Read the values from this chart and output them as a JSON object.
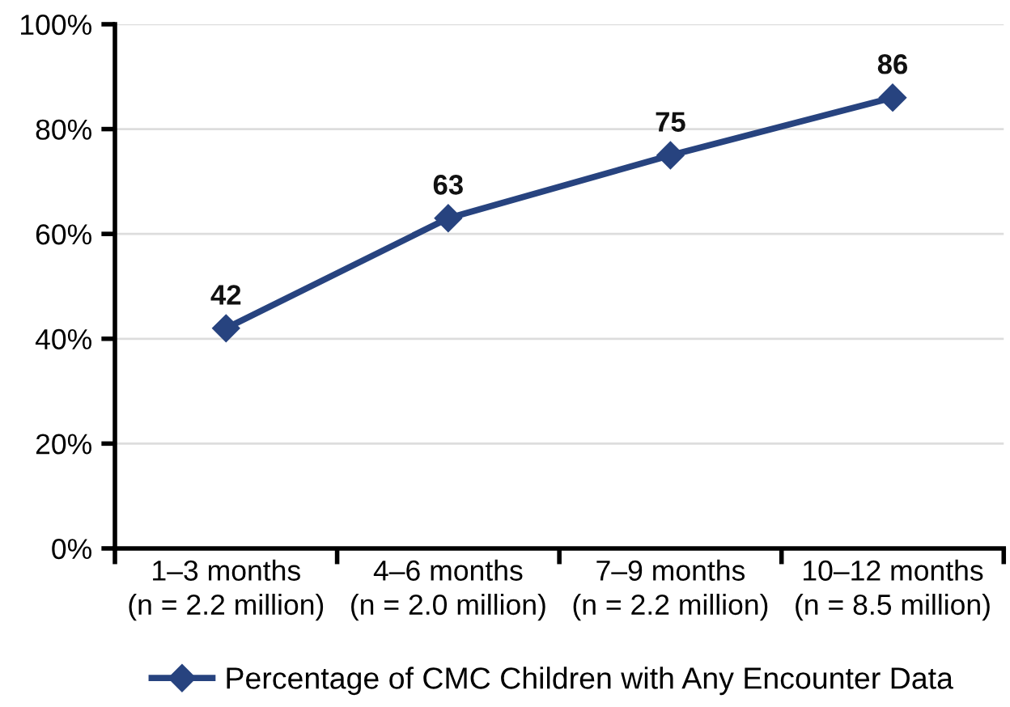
{
  "chart_data": {
    "type": "line",
    "categories": [
      "1–3 months\n(n = 2.2 million)",
      "4–6 months\n(n = 2.0 million)",
      "7–9 months\n(n = 2.2 million)",
      "10–12 months\n(n = 8.5 million)"
    ],
    "series": [
      {
        "name": "Percentage of CMC Children with Any Encounter Data",
        "color": "#27437f",
        "values": [
          42,
          63,
          75,
          86
        ]
      }
    ],
    "ylim": [
      0,
      100
    ],
    "yticks": [
      {
        "value": 0,
        "label": "0%"
      },
      {
        "value": 20,
        "label": "20%"
      },
      {
        "value": 40,
        "label": "40%"
      },
      {
        "value": 60,
        "label": "60%"
      },
      {
        "value": 80,
        "label": "80%"
      },
      {
        "value": 100,
        "label": "100%"
      }
    ],
    "grid": "y",
    "legend": "bottom",
    "marker": "diamond",
    "line_style": "solid",
    "data_labels": true
  }
}
